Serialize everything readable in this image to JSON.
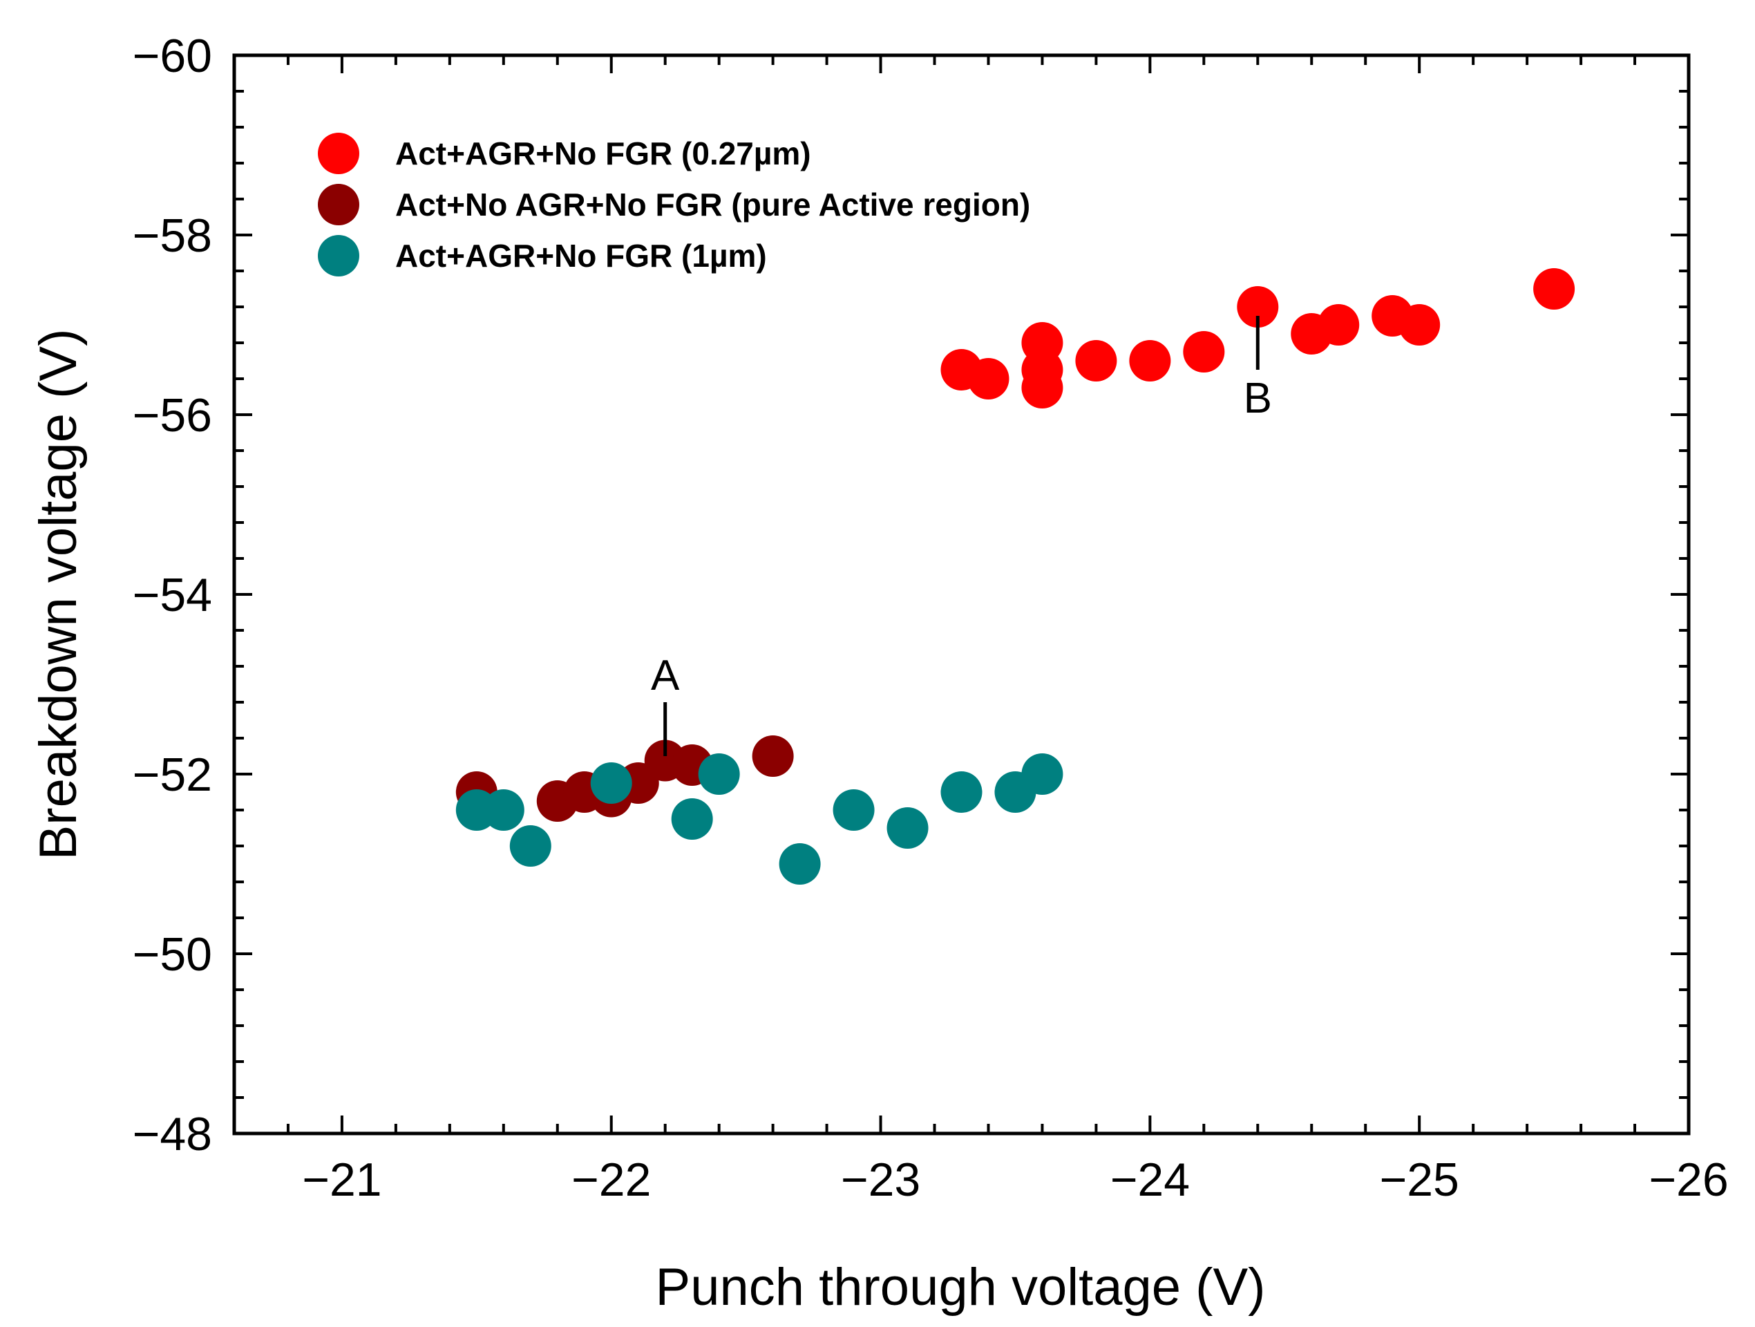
{
  "chart_data": {
    "type": "scatter",
    "title": "",
    "xlabel": "Punch through voltage (V)",
    "ylabel": "Breakdown voltage (V)",
    "xlim": [
      -20.6,
      -26
    ],
    "ylim": [
      -48,
      -60
    ],
    "x_reversed": true,
    "y_reversed": true,
    "xticks": [
      -21,
      -22,
      -23,
      -24,
      -25,
      -26
    ],
    "yticks": [
      -48,
      -50,
      -52,
      -54,
      -56,
      -58,
      -60
    ],
    "xtick_labels": [
      "−21",
      "−22",
      "−23",
      "−24",
      "−25",
      "−26"
    ],
    "ytick_labels": [
      "−48",
      "−50",
      "−52",
      "−54",
      "−56",
      "−58",
      "−60"
    ],
    "grid": false,
    "legend_position": "top-left",
    "series": [
      {
        "name": "Act+AGR+No FGR (0.27µm)",
        "color": "#ff0000",
        "points": [
          [
            -23.3,
            -56.5
          ],
          [
            -23.4,
            -56.4
          ],
          [
            -23.6,
            -56.8
          ],
          [
            -23.6,
            -56.5
          ],
          [
            -23.6,
            -56.3
          ],
          [
            -23.8,
            -56.6
          ],
          [
            -24.0,
            -56.6
          ],
          [
            -24.2,
            -56.7
          ],
          [
            -24.4,
            -57.2
          ],
          [
            -24.6,
            -56.9
          ],
          [
            -24.7,
            -57.0
          ],
          [
            -24.9,
            -57.1
          ],
          [
            -25.0,
            -57.0
          ],
          [
            -25.5,
            -57.4
          ]
        ]
      },
      {
        "name": "Act+No AGR+No FGR (pure Active region)",
        "color": "#8b0000",
        "points": [
          [
            -21.5,
            -51.8
          ],
          [
            -21.8,
            -51.7
          ],
          [
            -21.9,
            -51.8
          ],
          [
            -22.0,
            -51.75
          ],
          [
            -22.1,
            -51.9
          ],
          [
            -22.2,
            -52.15
          ],
          [
            -22.3,
            -52.1
          ],
          [
            -22.6,
            -52.2
          ]
        ]
      },
      {
        "name": "Act+AGR+No FGR (1µm)",
        "color": "#008080",
        "points": [
          [
            -21.5,
            -51.6
          ],
          [
            -21.6,
            -51.6
          ],
          [
            -21.7,
            -51.2
          ],
          [
            -22.0,
            -51.9
          ],
          [
            -22.3,
            -51.5
          ],
          [
            -22.4,
            -52.0
          ],
          [
            -22.7,
            -51.0
          ],
          [
            -22.9,
            -51.6
          ],
          [
            -23.1,
            -51.4
          ],
          [
            -23.3,
            -51.8
          ],
          [
            -23.5,
            -51.8
          ],
          [
            -23.6,
            -52.0
          ]
        ]
      }
    ],
    "annotations": [
      {
        "text": "A",
        "x": -22.2,
        "y": -52.2,
        "line_to_y": -52.8
      },
      {
        "text": "B",
        "x": -24.4,
        "y": -57.1,
        "line_to_y": -56.5
      }
    ]
  }
}
